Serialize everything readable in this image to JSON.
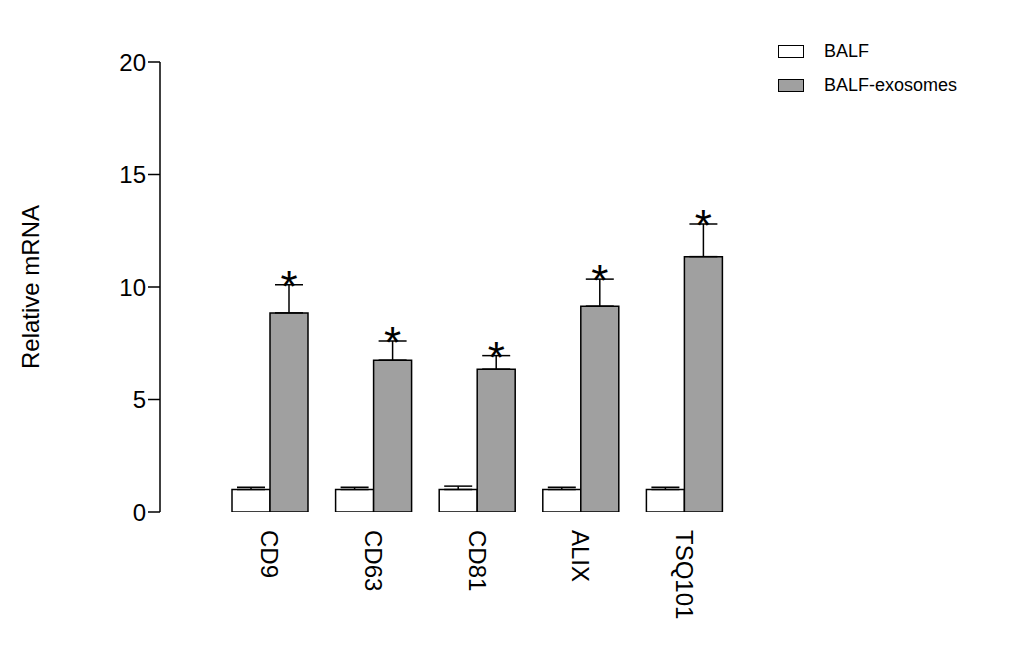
{
  "chart_data": {
    "type": "bar",
    "categories": [
      "CD9",
      "CD63",
      "CD81",
      "ALIX",
      "TSQ101"
    ],
    "series": [
      {
        "name": "BALF",
        "color": "#ffffff",
        "values": [
          1.0,
          1.0,
          1.0,
          1.0,
          1.0
        ],
        "errors": [
          0.1,
          0.1,
          0.15,
          0.1,
          0.1
        ]
      },
      {
        "name": "BALF-exosomes",
        "color": "#a0a0a0",
        "values": [
          8.85,
          6.75,
          6.35,
          9.15,
          11.35
        ],
        "errors": [
          1.25,
          0.85,
          0.6,
          1.2,
          1.45
        ],
        "significance": [
          "*",
          "*",
          "*",
          "*",
          "*"
        ]
      }
    ],
    "y_label": "Relative mRNA",
    "ylim": [
      0,
      20
    ],
    "yticks": [
      0,
      5,
      10,
      15,
      20
    ],
    "grid": false,
    "legend": "top right"
  }
}
